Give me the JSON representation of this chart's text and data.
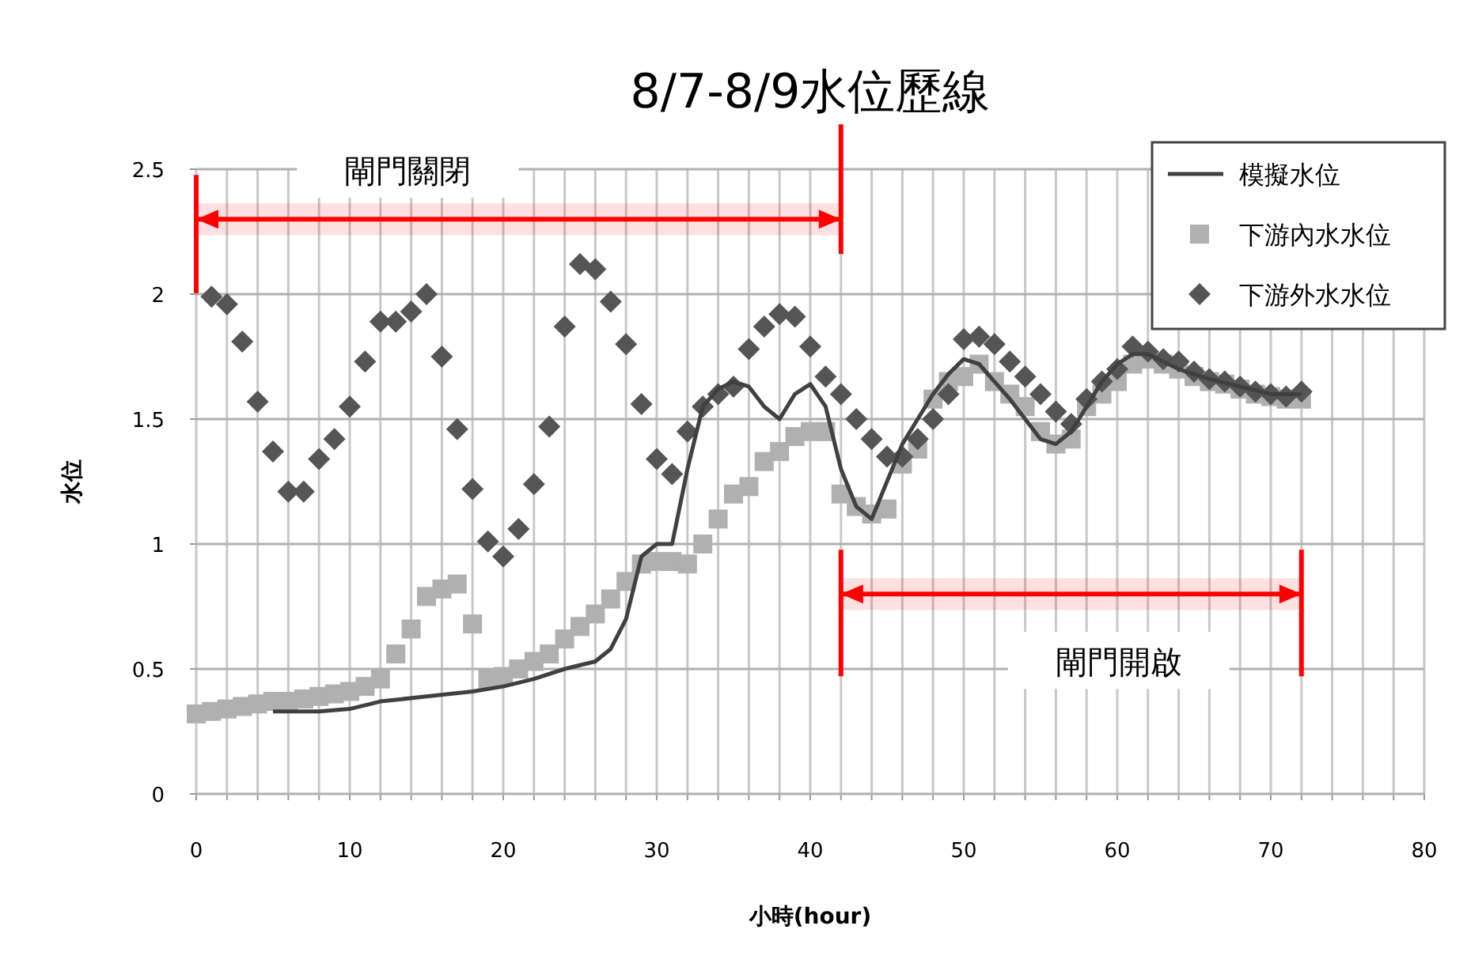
{
  "chart_data": {
    "type": "scatter",
    "title": "8/7-8/9水位歷線",
    "xlabel": "小時(hour)",
    "ylabel": "水位",
    "xlim": [
      0,
      80
    ],
    "ylim": [
      0,
      2.5
    ],
    "xticks": [
      0,
      {
        "value": 2,
        "label": null
      },
      {
        "value": 4,
        "label": null
      },
      {
        "value": 6,
        "label": null
      },
      {
        "value": 8,
        "label": null
      },
      10,
      {
        "value": 12,
        "label": null
      },
      {
        "value": 14,
        "label": null
      },
      {
        "value": 16,
        "label": null
      },
      {
        "value": 18,
        "label": null
      },
      20,
      {
        "value": 22,
        "label": null
      },
      {
        "value": 24,
        "label": null
      },
      {
        "value": 26,
        "label": null
      },
      {
        "value": 28,
        "label": null
      },
      30,
      {
        "value": 32,
        "label": null
      },
      {
        "value": 34,
        "label": null
      },
      {
        "value": 36,
        "label": null
      },
      {
        "value": 38,
        "label": null
      },
      40,
      {
        "value": 42,
        "label": null
      },
      {
        "value": 44,
        "label": null
      },
      {
        "value": 46,
        "label": null
      },
      {
        "value": 48,
        "label": null
      },
      50,
      {
        "value": 52,
        "label": null
      },
      {
        "value": 54,
        "label": null
      },
      {
        "value": 56,
        "label": null
      },
      {
        "value": 58,
        "label": null
      },
      60,
      {
        "value": 62,
        "label": null
      },
      {
        "value": 64,
        "label": null
      },
      {
        "value": 66,
        "label": null
      },
      {
        "value": 68,
        "label": null
      },
      70,
      {
        "value": 72,
        "label": null
      },
      {
        "value": 74,
        "label": null
      },
      {
        "value": 76,
        "label": null
      },
      {
        "value": 78,
        "label": null
      },
      80
    ],
    "yticks": [
      0,
      0.5,
      1,
      1.5,
      2,
      2.5
    ],
    "grid": true,
    "legend": "top right",
    "bands": [
      {
        "axis": "x",
        "from": 0,
        "to": 42,
        "label": "閘門關閉",
        "color": "#ff0000"
      },
      {
        "axis": "x",
        "from": 42,
        "to": 72,
        "label": "閘門開啟",
        "color": "#ff0000"
      }
    ],
    "series": [
      {
        "name": "模擬水位",
        "type": "line",
        "marker": "none",
        "color": "#404040",
        "x": [
          5,
          8,
          10,
          12,
          15,
          18,
          20,
          22,
          24,
          26,
          27,
          28,
          29,
          30,
          31,
          32,
          33,
          34,
          35,
          36,
          37,
          38,
          39,
          40,
          41,
          42,
          43,
          44,
          45,
          46,
          47,
          48,
          49,
          50,
          51,
          52,
          53,
          54,
          55,
          56,
          57,
          58,
          59,
          60,
          61,
          62,
          63,
          64,
          66,
          68,
          70,
          72
        ],
        "values": [
          0.33,
          0.33,
          0.34,
          0.37,
          0.39,
          0.41,
          0.43,
          0.46,
          0.5,
          0.53,
          0.58,
          0.7,
          0.95,
          1.0,
          1.0,
          1.3,
          1.55,
          1.62,
          1.65,
          1.63,
          1.55,
          1.5,
          1.6,
          1.64,
          1.55,
          1.3,
          1.15,
          1.1,
          1.25,
          1.4,
          1.5,
          1.6,
          1.68,
          1.74,
          1.72,
          1.65,
          1.58,
          1.5,
          1.42,
          1.4,
          1.45,
          1.55,
          1.65,
          1.72,
          1.76,
          1.76,
          1.73,
          1.7,
          1.66,
          1.63,
          1.6,
          1.6
        ]
      },
      {
        "name": "下游內水水位",
        "type": "scatter",
        "marker": "square",
        "color": "#b0b0b0",
        "x": [
          0,
          1,
          2,
          3,
          4,
          5,
          6,
          7,
          8,
          9,
          10,
          11,
          12,
          13,
          14,
          15,
          16,
          17,
          18,
          19,
          20,
          21,
          22,
          23,
          24,
          25,
          26,
          27,
          28,
          29,
          30,
          31,
          32,
          33,
          34,
          35,
          36,
          37,
          38,
          39,
          40,
          41,
          42,
          43,
          44,
          45,
          46,
          47,
          48,
          49,
          50,
          51,
          52,
          53,
          54,
          55,
          56,
          57,
          58,
          59,
          60,
          61,
          62,
          63,
          64,
          65,
          66,
          67,
          68,
          69,
          70,
          71,
          72
        ],
        "values": [
          0.32,
          0.33,
          0.34,
          0.35,
          0.36,
          0.37,
          0.37,
          0.38,
          0.39,
          0.4,
          0.41,
          0.43,
          0.46,
          0.56,
          0.66,
          0.79,
          0.82,
          0.84,
          0.68,
          0.46,
          0.47,
          0.5,
          0.53,
          0.56,
          0.62,
          0.67,
          0.72,
          0.78,
          0.85,
          0.92,
          0.93,
          0.93,
          0.92,
          1.0,
          1.1,
          1.2,
          1.23,
          1.33,
          1.37,
          1.43,
          1.45,
          1.45,
          1.2,
          1.15,
          1.12,
          1.14,
          1.32,
          1.38,
          1.58,
          1.65,
          1.67,
          1.72,
          1.65,
          1.6,
          1.55,
          1.45,
          1.4,
          1.42,
          1.55,
          1.6,
          1.65,
          1.72,
          1.74,
          1.72,
          1.7,
          1.67,
          1.65,
          1.64,
          1.62,
          1.6,
          1.59,
          1.58,
          1.58
        ]
      },
      {
        "name": "下游外水水位",
        "type": "scatter",
        "marker": "diamond",
        "color": "#555555",
        "x": [
          1,
          2,
          3,
          4,
          5,
          6,
          7,
          8,
          9,
          10,
          11,
          12,
          13,
          14,
          15,
          16,
          17,
          18,
          19,
          20,
          21,
          22,
          23,
          24,
          25,
          26,
          27,
          28,
          29,
          30,
          31,
          32,
          33,
          34,
          35,
          36,
          37,
          38,
          39,
          40,
          41,
          42,
          43,
          44,
          45,
          46,
          47,
          48,
          49,
          50,
          51,
          52,
          53,
          54,
          55,
          56,
          57,
          58,
          59,
          60,
          61,
          62,
          63,
          64,
          65,
          66,
          67,
          68,
          69,
          70,
          71,
          72
        ],
        "values": [
          1.99,
          1.96,
          1.81,
          1.57,
          1.37,
          1.21,
          1.21,
          1.34,
          1.42,
          1.55,
          1.73,
          1.89,
          1.89,
          1.93,
          2.0,
          1.75,
          1.46,
          1.22,
          1.01,
          0.95,
          1.06,
          1.24,
          1.47,
          1.87,
          2.12,
          2.1,
          1.97,
          1.8,
          1.56,
          1.34,
          1.28,
          1.45,
          1.55,
          1.6,
          1.63,
          1.78,
          1.87,
          1.92,
          1.91,
          1.79,
          1.67,
          1.6,
          1.5,
          1.42,
          1.35,
          1.35,
          1.42,
          1.5,
          1.6,
          1.82,
          1.83,
          1.8,
          1.73,
          1.67,
          1.6,
          1.53,
          1.48,
          1.58,
          1.65,
          1.7,
          1.79,
          1.77,
          1.74,
          1.73,
          1.69,
          1.66,
          1.65,
          1.63,
          1.61,
          1.6,
          1.59,
          1.61
        ]
      }
    ]
  }
}
